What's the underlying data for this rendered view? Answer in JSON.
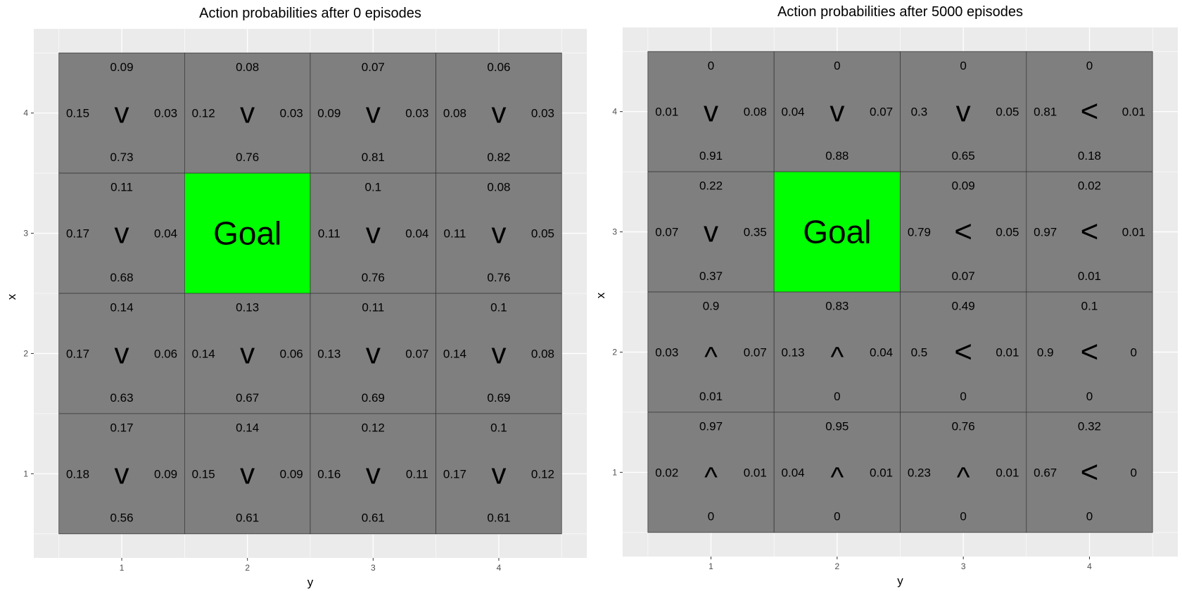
{
  "chart_data": [
    {
      "type": "heatmap",
      "title": "Action probabilities after  0  episodes",
      "xlabel": "y",
      "ylabel": "x",
      "xticks": [
        "1",
        "2",
        "3",
        "4"
      ],
      "yticks": [
        "1",
        "2",
        "3",
        "4"
      ],
      "xlim": [
        0.3,
        4.7
      ],
      "ylim": [
        0.3,
        4.7
      ],
      "grid": true,
      "goal_label": "Goal",
      "colors": {
        "cell": "#7f7f7f",
        "goal": "#00ff00",
        "panel": "#ebebeb",
        "gridline": "#ffffff"
      },
      "cells": [
        {
          "x": 4,
          "y": 1,
          "up": "0.09",
          "left": "0.15",
          "right": "0.03",
          "down": "0.73",
          "arrow": "v"
        },
        {
          "x": 4,
          "y": 2,
          "up": "0.08",
          "left": "0.12",
          "right": "0.03",
          "down": "0.76",
          "arrow": "v"
        },
        {
          "x": 4,
          "y": 3,
          "up": "0.07",
          "left": "0.09",
          "right": "0.03",
          "down": "0.81",
          "arrow": "v"
        },
        {
          "x": 4,
          "y": 4,
          "up": "0.06",
          "left": "0.08",
          "right": "0.03",
          "down": "0.82",
          "arrow": "v"
        },
        {
          "x": 3,
          "y": 1,
          "up": "0.11",
          "left": "0.17",
          "right": "0.04",
          "down": "0.68",
          "arrow": "v"
        },
        {
          "x": 3,
          "y": 2,
          "goal": true
        },
        {
          "x": 3,
          "y": 3,
          "up": "0.1",
          "left": "0.11",
          "right": "0.04",
          "down": "0.76",
          "arrow": "v"
        },
        {
          "x": 3,
          "y": 4,
          "up": "0.08",
          "left": "0.11",
          "right": "0.05",
          "down": "0.76",
          "arrow": "v"
        },
        {
          "x": 2,
          "y": 1,
          "up": "0.14",
          "left": "0.17",
          "right": "0.06",
          "down": "0.63",
          "arrow": "v"
        },
        {
          "x": 2,
          "y": 2,
          "up": "0.13",
          "left": "0.14",
          "right": "0.06",
          "down": "0.67",
          "arrow": "v"
        },
        {
          "x": 2,
          "y": 3,
          "up": "0.11",
          "left": "0.13",
          "right": "0.07",
          "down": "0.69",
          "arrow": "v"
        },
        {
          "x": 2,
          "y": 4,
          "up": "0.1",
          "left": "0.14",
          "right": "0.08",
          "down": "0.69",
          "arrow": "v"
        },
        {
          "x": 1,
          "y": 1,
          "up": "0.17",
          "left": "0.18",
          "right": "0.09",
          "down": "0.56",
          "arrow": "v"
        },
        {
          "x": 1,
          "y": 2,
          "up": "0.14",
          "left": "0.15",
          "right": "0.09",
          "down": "0.61",
          "arrow": "v"
        },
        {
          "x": 1,
          "y": 3,
          "up": "0.12",
          "left": "0.16",
          "right": "0.11",
          "down": "0.61",
          "arrow": "v"
        },
        {
          "x": 1,
          "y": 4,
          "up": "0.1",
          "left": "0.17",
          "right": "0.12",
          "down": "0.61",
          "arrow": "v"
        }
      ]
    },
    {
      "type": "heatmap",
      "title": "Action probabilities after  5000  episodes",
      "xlabel": "y",
      "ylabel": "x",
      "xticks": [
        "1",
        "2",
        "3",
        "4"
      ],
      "yticks": [
        "1",
        "2",
        "3",
        "4"
      ],
      "xlim": [
        0.3,
        4.7
      ],
      "ylim": [
        0.3,
        4.7
      ],
      "grid": true,
      "goal_label": "Goal",
      "colors": {
        "cell": "#7f7f7f",
        "goal": "#00ff00",
        "panel": "#ebebeb",
        "gridline": "#ffffff"
      },
      "cells": [
        {
          "x": 4,
          "y": 1,
          "up": "0",
          "left": "0.01",
          "right": "0.08",
          "down": "0.91",
          "arrow": "v"
        },
        {
          "x": 4,
          "y": 2,
          "up": "0",
          "left": "0.04",
          "right": "0.07",
          "down": "0.88",
          "arrow": "v"
        },
        {
          "x": 4,
          "y": 3,
          "up": "0",
          "left": "0.3",
          "right": "0.05",
          "down": "0.65",
          "arrow": "v"
        },
        {
          "x": 4,
          "y": 4,
          "up": "0",
          "left": "0.81",
          "right": "0.01",
          "down": "0.18",
          "arrow": "<"
        },
        {
          "x": 3,
          "y": 1,
          "up": "0.22",
          "left": "0.07",
          "right": "0.35",
          "down": "0.37",
          "arrow": "v"
        },
        {
          "x": 3,
          "y": 2,
          "goal": true
        },
        {
          "x": 3,
          "y": 3,
          "up": "0.09",
          "left": "0.79",
          "right": "0.05",
          "down": "0.07",
          "arrow": "<"
        },
        {
          "x": 3,
          "y": 4,
          "up": "0.02",
          "left": "0.97",
          "right": "0.01",
          "down": "0.01",
          "arrow": "<"
        },
        {
          "x": 2,
          "y": 1,
          "up": "0.9",
          "left": "0.03",
          "right": "0.07",
          "down": "0.01",
          "arrow": "^"
        },
        {
          "x": 2,
          "y": 2,
          "up": "0.83",
          "left": "0.13",
          "right": "0.04",
          "down": "0",
          "arrow": "^"
        },
        {
          "x": 2,
          "y": 3,
          "up": "0.49",
          "left": "0.5",
          "right": "0.01",
          "down": "0",
          "arrow": "<"
        },
        {
          "x": 2,
          "y": 4,
          "up": "0.1",
          "left": "0.9",
          "right": "0",
          "down": "0",
          "arrow": "<"
        },
        {
          "x": 1,
          "y": 1,
          "up": "0.97",
          "left": "0.02",
          "right": "0.01",
          "down": "0",
          "arrow": "^"
        },
        {
          "x": 1,
          "y": 2,
          "up": "0.95",
          "left": "0.04",
          "right": "0.01",
          "down": "0",
          "arrow": "^"
        },
        {
          "x": 1,
          "y": 3,
          "up": "0.76",
          "left": "0.23",
          "right": "0.01",
          "down": "0",
          "arrow": "^"
        },
        {
          "x": 1,
          "y": 4,
          "up": "0.32",
          "left": "0.67",
          "right": "0",
          "down": "0",
          "arrow": "<"
        }
      ]
    }
  ]
}
